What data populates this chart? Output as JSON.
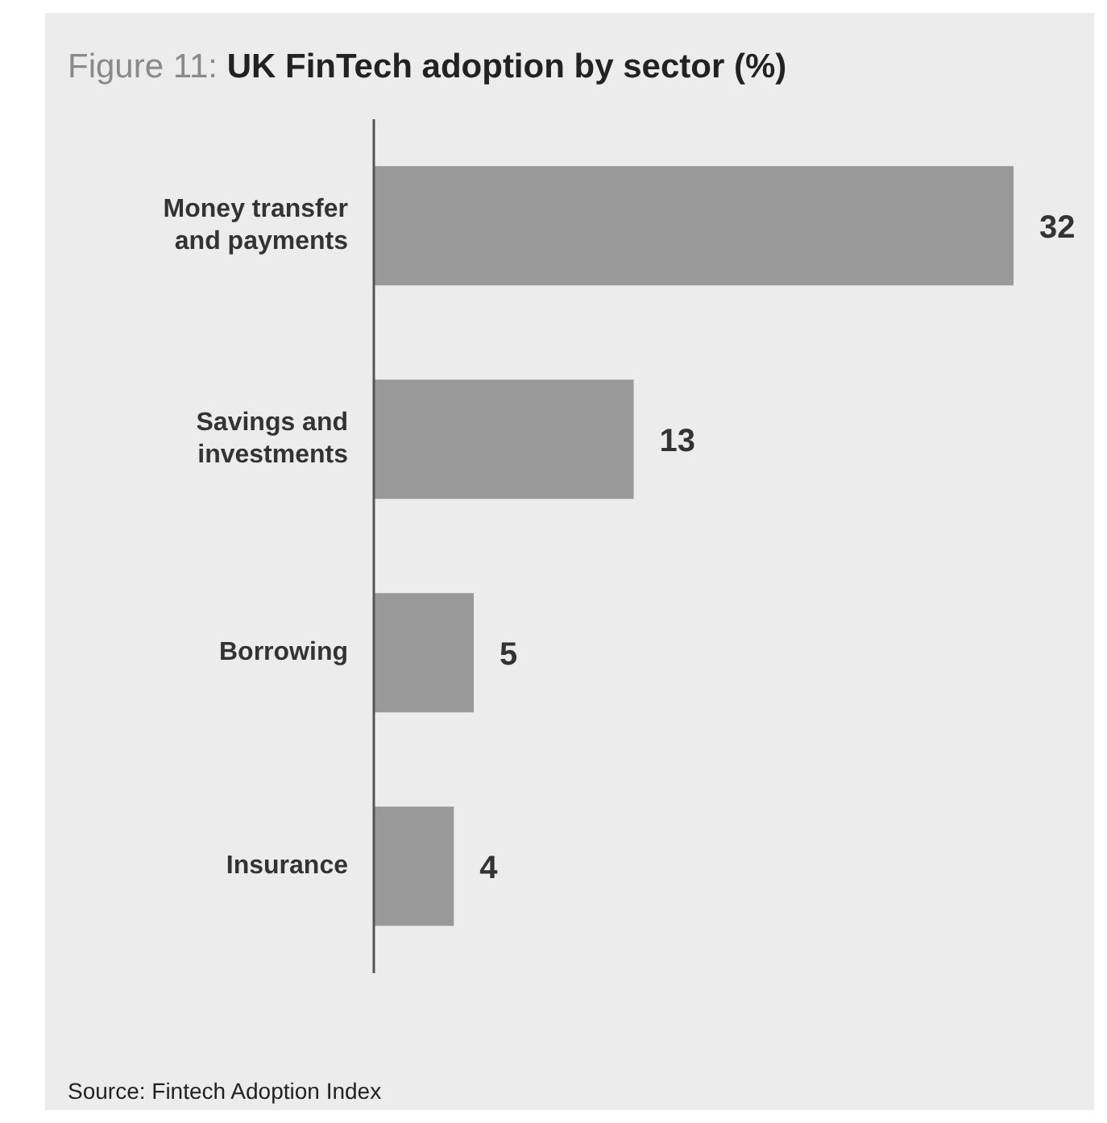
{
  "chart_data": {
    "type": "bar",
    "orientation": "horizontal",
    "title": "Figure 11: UK FinTech adoption by sector (%)",
    "categories": [
      "Money transfer and payments",
      "Savings and investments",
      "Borrowing",
      "Insurance"
    ],
    "values": [
      32,
      13,
      5,
      4
    ],
    "color": "#999999",
    "data_labels": true,
    "annotations": [
      "Source: Fintech Adoption Index"
    ]
  }
}
